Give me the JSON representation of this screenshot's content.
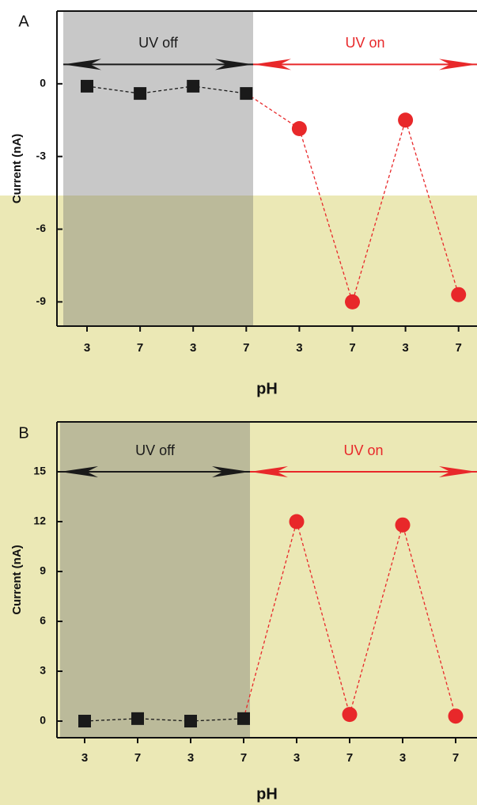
{
  "chart_data": [
    {
      "type": "line",
      "panel": "A",
      "ylabel": "Current (nA)",
      "xlabel": "pH",
      "categories": [
        "3",
        "7",
        "3",
        "7",
        "3",
        "7",
        "3",
        "7"
      ],
      "series": [
        {
          "name": "UV off",
          "color": "#1a1a1a",
          "marker": "square",
          "values": [
            -0.1,
            -0.4,
            -0.1,
            -0.4,
            null,
            null,
            null,
            null
          ]
        },
        {
          "name": "UV on",
          "color": "#e8282a",
          "marker": "circle",
          "values": [
            null,
            null,
            null,
            null,
            -1.85,
            -9.0,
            -1.5,
            -8.7
          ]
        }
      ],
      "arrow_level": 0.8,
      "ylim": [
        -10,
        3
      ],
      "yticks": [
        -9,
        -6,
        -3,
        0
      ]
    },
    {
      "type": "line",
      "panel": "B",
      "ylabel": "Current (nA)",
      "xlabel": "pH",
      "categories": [
        "3",
        "7",
        "3",
        "7",
        "3",
        "7",
        "3",
        "7"
      ],
      "series": [
        {
          "name": "UV off",
          "color": "#1a1a1a",
          "marker": "square",
          "values": [
            0,
            0.15,
            0,
            0.15,
            null,
            null,
            null,
            null
          ]
        },
        {
          "name": "UV on",
          "color": "#e8282a",
          "marker": "circle",
          "values": [
            null,
            null,
            null,
            null,
            12,
            0.4,
            11.8,
            0.3
          ]
        }
      ],
      "arrow_level": 15,
      "ylim": [
        -1,
        18
      ],
      "yticks": [
        0,
        3,
        6,
        9,
        12,
        15
      ]
    }
  ]
}
